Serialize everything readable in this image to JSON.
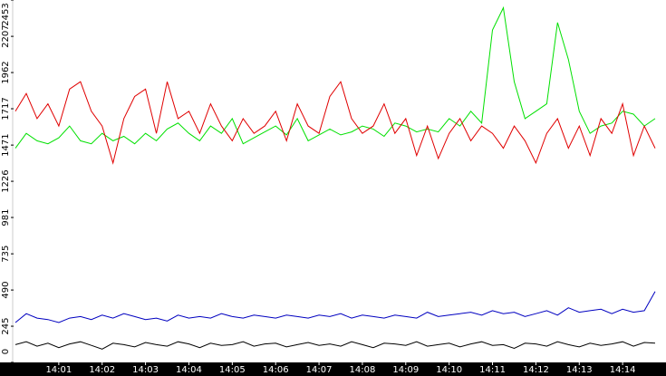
{
  "chart_data": {
    "type": "line",
    "x": [
      840,
      840.25,
      840.5,
      840.75,
      841,
      841.25,
      841.5,
      841.75,
      842,
      842.25,
      842.5,
      842.75,
      843,
      843.25,
      843.5,
      843.75,
      844,
      844.25,
      844.5,
      844.75,
      845,
      845.25,
      845.5,
      845.75,
      846,
      846.25,
      846.5,
      846.75,
      847,
      847.25,
      847.5,
      847.75,
      848,
      848.25,
      848.5,
      848.75,
      849,
      849.25,
      849.5,
      849.75,
      850,
      850.25,
      850.5,
      850.75,
      851,
      851.25,
      851.5,
      851.75,
      852,
      852.25,
      852.5,
      852.75,
      853,
      853.25,
      853.5,
      853.75,
      854,
      854.25,
      854.5,
      854.75
    ],
    "series": [
      {
        "color": "#00e000",
        "values": [
          1450,
          1550,
          1500,
          1480,
          1520,
          1600,
          1500,
          1480,
          1550,
          1500,
          1530,
          1480,
          1550,
          1500,
          1580,
          1620,
          1550,
          1500,
          1600,
          1550,
          1650,
          1480,
          1520,
          1560,
          1600,
          1540,
          1650,
          1500,
          1540,
          1580,
          1540,
          1560,
          1600,
          1580,
          1530,
          1620,
          1600,
          1560,
          1580,
          1560,
          1650,
          1600,
          1700,
          1620,
          2250,
          2400,
          1900,
          1650,
          1700,
          1750,
          2300,
          2050,
          1700,
          1550,
          1600,
          1620,
          1700,
          1680,
          1600,
          1650
        ]
      },
      {
        "color": "#e00000",
        "values": [
          1700,
          1820,
          1650,
          1750,
          1600,
          1850,
          1900,
          1700,
          1600,
          1350,
          1650,
          1800,
          1850,
          1550,
          1900,
          1650,
          1700,
          1550,
          1750,
          1600,
          1500,
          1650,
          1550,
          1600,
          1700,
          1500,
          1750,
          1600,
          1550,
          1800,
          1900,
          1650,
          1550,
          1600,
          1750,
          1550,
          1650,
          1400,
          1600,
          1380,
          1550,
          1650,
          1500,
          1600,
          1550,
          1450,
          1600,
          1500,
          1350,
          1550,
          1650,
          1450,
          1600,
          1400,
          1650,
          1550,
          1750,
          1400,
          1600,
          1450
        ]
      },
      {
        "color": "#0000c0",
        "values": [
          270,
          330,
          300,
          290,
          270,
          300,
          310,
          290,
          320,
          300,
          330,
          310,
          290,
          300,
          280,
          320,
          300,
          310,
          300,
          330,
          310,
          300,
          320,
          310,
          300,
          320,
          310,
          300,
          320,
          310,
          330,
          300,
          320,
          310,
          300,
          320,
          310,
          300,
          340,
          310,
          320,
          330,
          340,
          320,
          350,
          330,
          340,
          310,
          330,
          350,
          320,
          370,
          340,
          350,
          360,
          330,
          360,
          340,
          350,
          480
        ]
      },
      {
        "color": "#000000",
        "values": [
          120,
          140,
          110,
          130,
          100,
          125,
          140,
          115,
          90,
          130,
          120,
          105,
          135,
          120,
          110,
          140,
          125,
          100,
          130,
          115,
          120,
          140,
          110,
          125,
          130,
          105,
          120,
          135,
          115,
          125,
          110,
          140,
          120,
          100,
          130,
          125,
          115,
          140,
          110,
          120,
          130,
          105,
          125,
          140,
          115,
          120,
          95,
          130,
          125,
          110,
          140,
          120,
          105,
          130,
          115,
          125,
          140,
          110,
          135,
          130
        ]
      }
    ],
    "xlim": [
      840,
      855
    ],
    "xticks": [
      {
        "value": 841,
        "label": "14:01"
      },
      {
        "value": 842,
        "label": "14:02"
      },
      {
        "value": 843,
        "label": "14:03"
      },
      {
        "value": 844,
        "label": "14:04"
      },
      {
        "value": 845,
        "label": "14:05"
      },
      {
        "value": 846,
        "label": "14:06"
      },
      {
        "value": 847,
        "label": "14:07"
      },
      {
        "value": 848,
        "label": "14:08"
      },
      {
        "value": 849,
        "label": "14:09"
      },
      {
        "value": 850,
        "label": "14:10"
      },
      {
        "value": 851,
        "label": "14:11"
      },
      {
        "value": 852,
        "label": "14:12"
      },
      {
        "value": 853,
        "label": "14:13"
      },
      {
        "value": 854,
        "label": "14:14"
      }
    ],
    "ylim": [
      0,
      2453
    ],
    "yticks": [
      0,
      245,
      490,
      735,
      981,
      1226,
      1471,
      1717,
      1962,
      2207,
      2453
    ]
  }
}
